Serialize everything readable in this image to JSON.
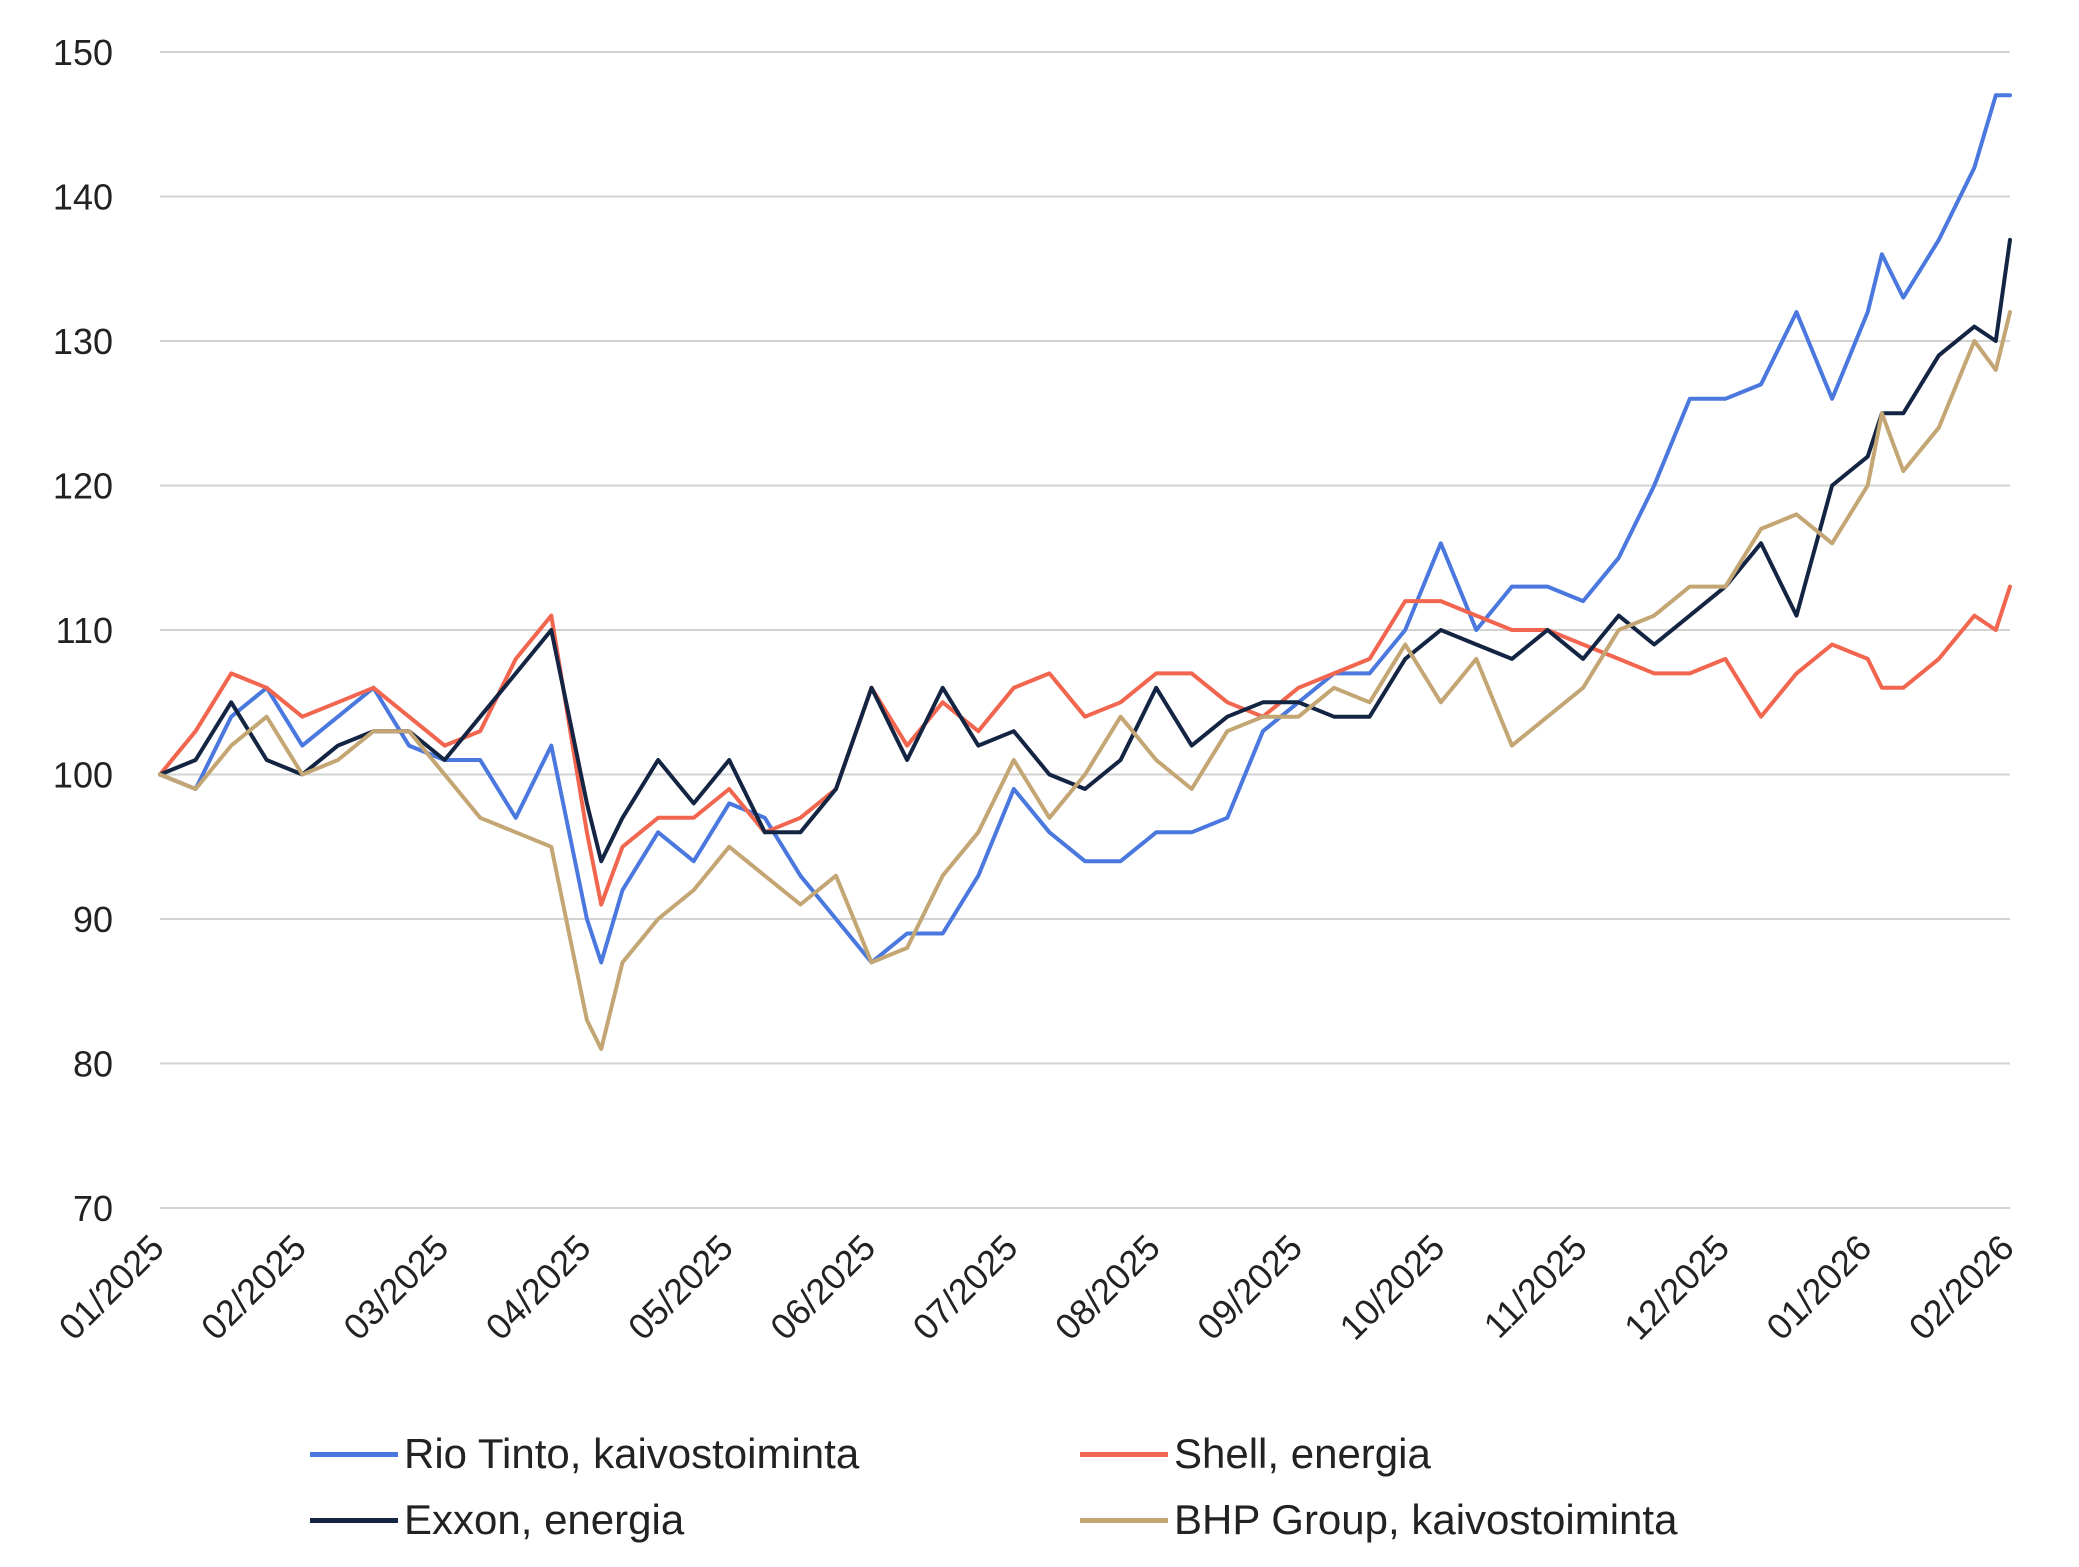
{
  "chart_data": {
    "type": "line",
    "title": "",
    "xlabel": "",
    "ylabel": "",
    "ylim": [
      70,
      150
    ],
    "yticks": [
      70,
      80,
      90,
      100,
      110,
      120,
      130,
      140,
      150
    ],
    "xtick_labels": [
      "01/2025",
      "02/2025",
      "03/2025",
      "04/2025",
      "05/2025",
      "06/2025",
      "07/2025",
      "08/2025",
      "09/2025",
      "10/2025",
      "11/2025",
      "12/2025",
      "01/2026",
      "02/2026"
    ],
    "x_range": [
      0,
      13
    ],
    "series": [
      {
        "name": "Rio Tinto, kaivostoiminta",
        "color": "#4a78de",
        "x": [
          0,
          0.25,
          0.5,
          0.75,
          1,
          1.25,
          1.5,
          1.75,
          2,
          2.25,
          2.5,
          2.75,
          3,
          3.1,
          3.25,
          3.5,
          3.75,
          4,
          4.25,
          4.5,
          4.75,
          5,
          5.25,
          5.5,
          5.75,
          6,
          6.25,
          6.5,
          6.75,
          7,
          7.25,
          7.5,
          7.75,
          8,
          8.25,
          8.5,
          8.75,
          9,
          9.25,
          9.5,
          9.75,
          10,
          10.25,
          10.5,
          10.75,
          11,
          11.25,
          11.5,
          11.75,
          12,
          12.1,
          12.25,
          12.5,
          12.75,
          12.9,
          13
        ],
        "values": [
          100,
          99,
          104,
          106,
          102,
          104,
          106,
          102,
          101,
          101,
          97,
          102,
          90,
          87,
          92,
          96,
          94,
          98,
          97,
          93,
          90,
          87,
          89,
          89,
          93,
          99,
          96,
          94,
          94,
          96,
          96,
          97,
          103,
          105,
          107,
          107,
          110,
          116,
          110,
          113,
          113,
          112,
          115,
          120,
          126,
          126,
          127,
          132,
          126,
          132,
          136,
          133,
          137,
          142,
          147,
          147
        ]
      },
      {
        "name": "Shell, energia",
        "color": "#f2654f",
        "x": [
          0,
          0.25,
          0.5,
          0.75,
          1,
          1.25,
          1.5,
          1.75,
          2,
          2.25,
          2.5,
          2.75,
          3,
          3.1,
          3.25,
          3.5,
          3.75,
          4,
          4.25,
          4.5,
          4.75,
          5,
          5.25,
          5.5,
          5.75,
          6,
          6.25,
          6.5,
          6.75,
          7,
          7.25,
          7.5,
          7.75,
          8,
          8.25,
          8.5,
          8.75,
          9,
          9.25,
          9.5,
          9.75,
          10,
          10.25,
          10.5,
          10.75,
          11,
          11.25,
          11.5,
          11.75,
          12,
          12.1,
          12.25,
          12.5,
          12.75,
          12.9,
          13
        ],
        "values": [
          100,
          103,
          107,
          106,
          104,
          105,
          106,
          104,
          102,
          103,
          108,
          111,
          96,
          91,
          95,
          97,
          97,
          99,
          96,
          97,
          99,
          106,
          102,
          105,
          103,
          106,
          107,
          104,
          105,
          107,
          107,
          105,
          104,
          106,
          107,
          108,
          112,
          112,
          111,
          110,
          110,
          109,
          108,
          107,
          107,
          108,
          104,
          107,
          109,
          108,
          106,
          106,
          108,
          111,
          110,
          113
        ]
      },
      {
        "name": "Exxon, energia",
        "color": "#142544",
        "x": [
          0,
          0.25,
          0.5,
          0.75,
          1,
          1.25,
          1.5,
          1.75,
          2,
          2.25,
          2.5,
          2.75,
          3,
          3.1,
          3.25,
          3.5,
          3.75,
          4,
          4.25,
          4.5,
          4.75,
          5,
          5.25,
          5.5,
          5.75,
          6,
          6.25,
          6.5,
          6.75,
          7,
          7.25,
          7.5,
          7.75,
          8,
          8.25,
          8.5,
          8.75,
          9,
          9.25,
          9.5,
          9.75,
          10,
          10.25,
          10.5,
          10.75,
          11,
          11.25,
          11.5,
          11.75,
          12,
          12.1,
          12.25,
          12.5,
          12.75,
          12.9,
          13
        ],
        "values": [
          100,
          101,
          105,
          101,
          100,
          102,
          103,
          103,
          101,
          104,
          107,
          110,
          98,
          94,
          97,
          101,
          98,
          101,
          96,
          96,
          99,
          106,
          101,
          106,
          102,
          103,
          100,
          99,
          101,
          106,
          102,
          104,
          105,
          105,
          104,
          104,
          108,
          110,
          109,
          108,
          110,
          108,
          111,
          109,
          111,
          113,
          116,
          111,
          120,
          122,
          125,
          125,
          129,
          131,
          130,
          137
        ]
      },
      {
        "name": "BHP Group, kaivostoiminta",
        "color": "#c3a673",
        "x": [
          0,
          0.25,
          0.5,
          0.75,
          1,
          1.25,
          1.5,
          1.75,
          2,
          2.25,
          2.5,
          2.75,
          3,
          3.1,
          3.25,
          3.5,
          3.75,
          4,
          4.25,
          4.5,
          4.75,
          5,
          5.25,
          5.5,
          5.75,
          6,
          6.25,
          6.5,
          6.75,
          7,
          7.25,
          7.5,
          7.75,
          8,
          8.25,
          8.5,
          8.75,
          9,
          9.25,
          9.5,
          9.75,
          10,
          10.25,
          10.5,
          10.75,
          11,
          11.25,
          11.5,
          11.75,
          12,
          12.1,
          12.25,
          12.5,
          12.75,
          12.9,
          13
        ],
        "values": [
          100,
          99,
          102,
          104,
          100,
          101,
          103,
          103,
          100,
          97,
          96,
          95,
          83,
          81,
          87,
          90,
          92,
          95,
          93,
          91,
          93,
          87,
          88,
          93,
          96,
          101,
          97,
          100,
          104,
          101,
          99,
          103,
          104,
          104,
          106,
          105,
          109,
          105,
          108,
          102,
          104,
          106,
          110,
          111,
          113,
          113,
          117,
          118,
          116,
          120,
          125,
          121,
          124,
          130,
          128,
          132
        ]
      }
    ],
    "legend": [
      {
        "label": "Rio Tinto, kaivostoiminta",
        "color": "#4a78de"
      },
      {
        "label": "Shell, energia",
        "color": "#f2654f"
      },
      {
        "label": "Exxon, energia",
        "color": "#142544"
      },
      {
        "label": "BHP Group, kaivostoiminta",
        "color": "#c3a673"
      }
    ],
    "legend_position": "bottom",
    "grid": true
  }
}
